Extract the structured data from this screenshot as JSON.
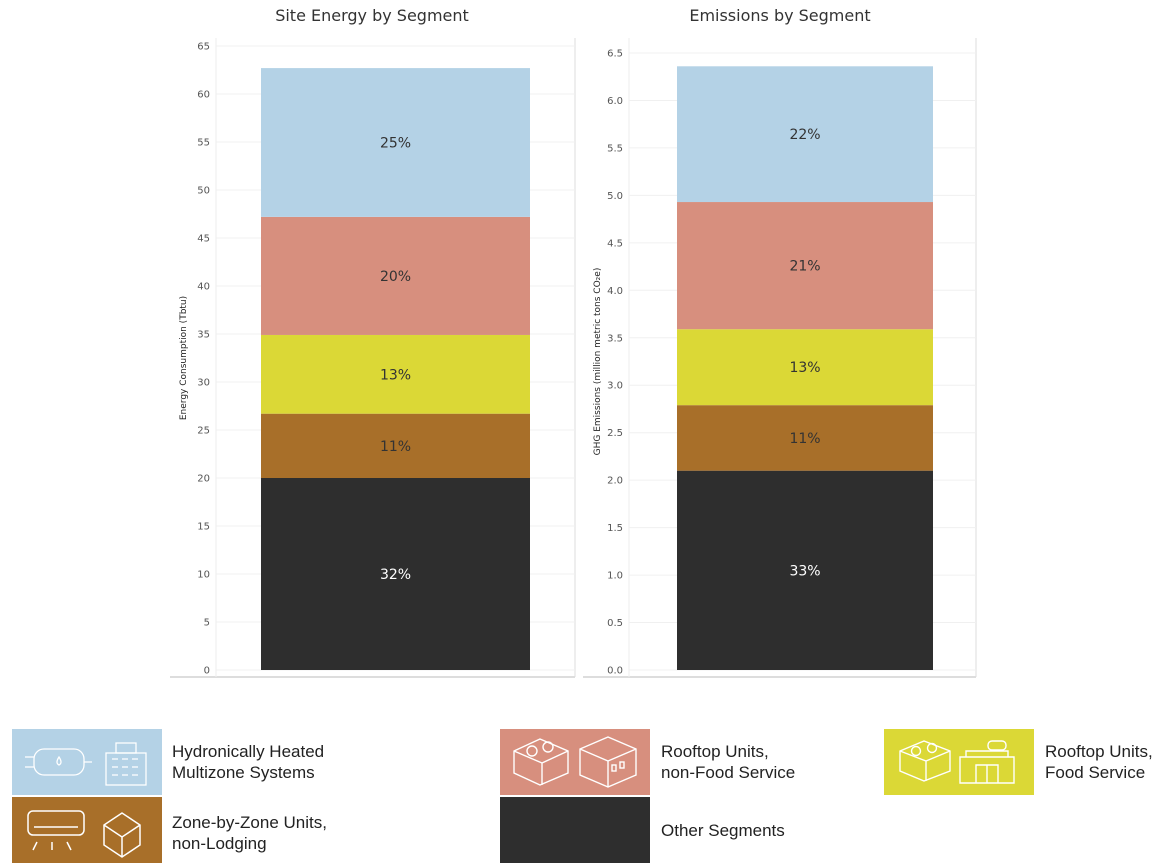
{
  "colors": {
    "hydronic": "#b4d2e6",
    "rtu_nonfood": "#d78f7e",
    "rtu_food": "#dbd836",
    "zone": "#a86f29",
    "other": "#2e2e2e"
  },
  "chart_data": [
    {
      "type": "bar",
      "stacked": true,
      "title": "Site Energy by Segment",
      "ylabel": "Energy Consumption (Tbtu)",
      "ylim": [
        0,
        65
      ],
      "yticks": [
        0,
        5,
        10,
        15,
        20,
        25,
        30,
        35,
        40,
        45,
        50,
        55,
        60,
        65
      ],
      "tick_format": 0,
      "series": [
        {
          "key": "other",
          "value": 20.0,
          "label": "32%"
        },
        {
          "key": "zone",
          "value": 6.7,
          "label": "11%"
        },
        {
          "key": "rtu_food",
          "value": 8.2,
          "label": "13%"
        },
        {
          "key": "rtu_nonfood",
          "value": 12.3,
          "label": "20%"
        },
        {
          "key": "hydronic",
          "value": 15.5,
          "label": "25%"
        }
      ]
    },
    {
      "type": "bar",
      "stacked": true,
      "title": "Emissions by Segment",
      "ylabel": "GHG Emissions (million metric tons CO₂e)",
      "ylim": [
        0,
        6.5
      ],
      "yticks": [
        0,
        0.5,
        1,
        1.5,
        2,
        2.5,
        3,
        3.5,
        4,
        4.5,
        5,
        5.5,
        6,
        6.5
      ],
      "tick_format": 1,
      "series": [
        {
          "key": "other",
          "value": 2.1,
          "label": "33%"
        },
        {
          "key": "zone",
          "value": 0.69,
          "label": "11%"
        },
        {
          "key": "rtu_food",
          "value": 0.8,
          "label": "13%"
        },
        {
          "key": "rtu_nonfood",
          "value": 1.34,
          "label": "21%"
        },
        {
          "key": "hydronic",
          "value": 1.43,
          "label": "22%"
        }
      ]
    }
  ],
  "legend": {
    "hydronic": "Hydronically Heated\nMultizone Systems",
    "rtu_nonfood": "Rooftop Units,\nnon-Food Service",
    "rtu_food": "Rooftop Units,\nFood Service",
    "zone": "Zone-by-Zone Units,\nnon-Lodging",
    "other": "Other  Segments"
  }
}
